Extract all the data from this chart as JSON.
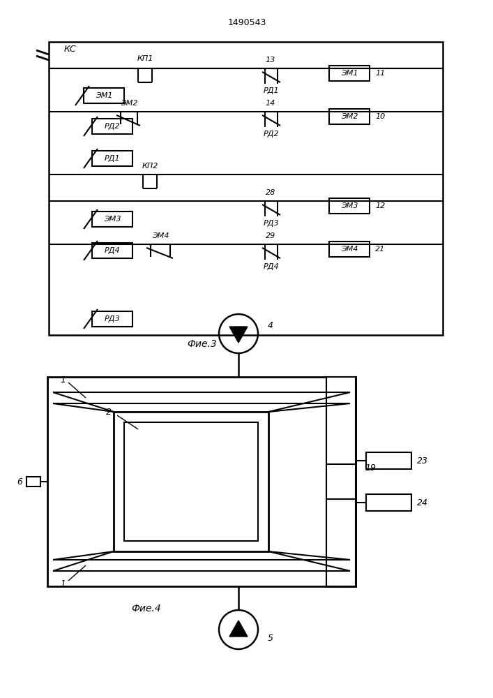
{
  "title": "1490543",
  "fig3_caption": "Фие.3",
  "fig4_caption": "Фие.4",
  "bg_color": "#ffffff",
  "line_color": "#000000"
}
